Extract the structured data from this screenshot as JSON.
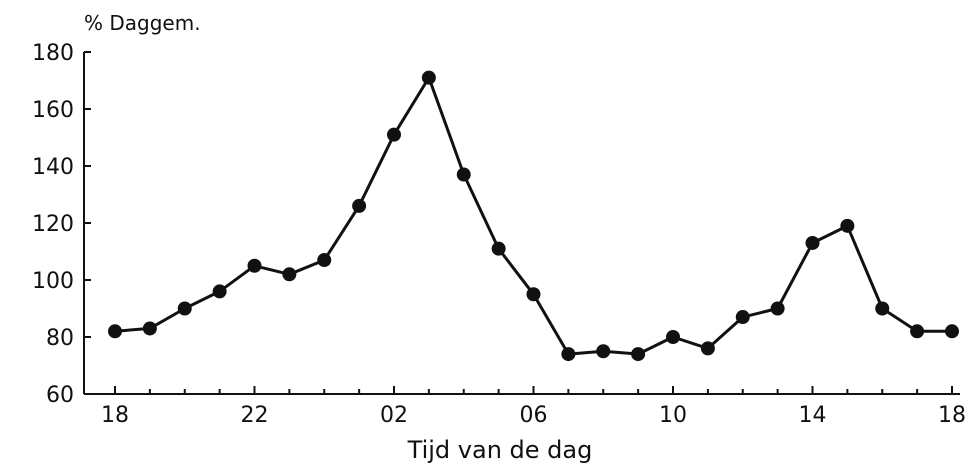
{
  "chart_data": {
    "type": "line",
    "title": "",
    "ylabel": "% Daggem.",
    "xlabel": "Tijd van de dag",
    "ylim": [
      60,
      180
    ],
    "yticks": [
      "60",
      "80",
      "100",
      "120",
      "140",
      "160",
      "180"
    ],
    "xtick_labels": [
      "18",
      "22",
      "02",
      "06",
      "10",
      "14",
      "18"
    ],
    "grid": false,
    "legend": "none",
    "colors": {
      "line": "#111111",
      "marker": "#111111",
      "axis": "#111111"
    },
    "series": [
      {
        "x": [
          "18",
          "19",
          "20",
          "21",
          "22",
          "23",
          "24",
          "01",
          "02",
          "03",
          "04",
          "05",
          "06",
          "07",
          "08",
          "09",
          "10",
          "11",
          "12",
          "13",
          "14",
          "15",
          "16",
          "17",
          "18"
        ],
        "values": [
          82,
          83,
          90,
          96,
          105,
          102,
          107,
          126,
          151,
          171,
          137,
          111,
          95,
          74,
          75,
          74,
          80,
          76,
          87,
          90,
          113,
          119,
          90,
          82,
          82
        ]
      }
    ]
  }
}
